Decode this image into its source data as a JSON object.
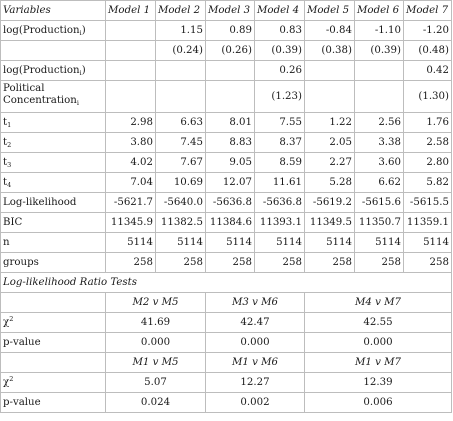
{
  "header": {
    "variables": "Variables",
    "models": [
      "Model 1",
      "Model 2",
      "Model 3",
      "Model 4",
      "Model 5",
      "Model 6",
      "Model 7"
    ]
  },
  "rows": [
    {
      "label": "log(Production",
      "sub": "i",
      "suffix": ")",
      "cells": [
        "",
        "1.15",
        "0.89",
        "0.83",
        "-0.84",
        "-1.10",
        "-1.20"
      ]
    },
    {
      "label": "",
      "sub": "",
      "suffix": "",
      "cells": [
        "",
        "(0.24)",
        "(0.26)",
        "(0.39)",
        "(0.38)",
        "(0.39)",
        "(0.48)"
      ]
    },
    {
      "label": "log(Production",
      "sub": "i",
      "suffix": ")",
      "cells": [
        "",
        "",
        "",
        "0.26",
        "",
        "",
        "0.42"
      ]
    },
    {
      "label": "Political Concentration",
      "sub": "i",
      "suffix": "",
      "cells": [
        "",
        "",
        "",
        "(1.23)",
        "",
        "",
        "(1.30)"
      ]
    },
    {
      "label": "t",
      "sub": "1",
      "suffix": "",
      "cells": [
        "2.98",
        "6.63",
        "8.01",
        "7.55",
        "1.22",
        "2.56",
        "1.76"
      ]
    },
    {
      "label": "t",
      "sub": "2",
      "suffix": "",
      "cells": [
        "3.80",
        "7.45",
        "8.83",
        "8.37",
        "2.05",
        "3.38",
        "2.58"
      ]
    },
    {
      "label": "t",
      "sub": "3",
      "suffix": "",
      "cells": [
        "4.02",
        "7.67",
        "9.05",
        "8.59",
        "2.27",
        "3.60",
        "2.80"
      ]
    },
    {
      "label": "t",
      "sub": "4",
      "suffix": "",
      "cells": [
        "7.04",
        "10.69",
        "12.07",
        "11.61",
        "5.28",
        "6.62",
        "5.82"
      ]
    },
    {
      "label": "Log-likelihood",
      "sub": "",
      "suffix": "",
      "cells": [
        "-5621.7",
        "-5640.0",
        "-5636.8",
        "-5636.8",
        "-5619.2",
        "-5615.6",
        "-5615.5"
      ]
    },
    {
      "label": "BIC",
      "sub": "",
      "suffix": "",
      "cells": [
        "11345.9",
        "11382.5",
        "11384.6",
        "11393.1",
        "11349.5",
        "11350.7",
        "11359.1"
      ]
    },
    {
      "label": "n",
      "sub": "",
      "suffix": "",
      "cells": [
        "5114",
        "5114",
        "5114",
        "5114",
        "5114",
        "5114",
        "5114"
      ]
    },
    {
      "label": "groups",
      "sub": "",
      "suffix": "",
      "cells": [
        "258",
        "258",
        "258",
        "258",
        "258",
        "258",
        "258"
      ]
    }
  ],
  "lrt": {
    "title": "Log-likelihood Ratio Tests",
    "chi_label": "χ",
    "chi_sup": "2",
    "pvalue_label": "p-value",
    "groups": [
      {
        "comparisons": [
          "M2 v M5",
          "M3 v M6",
          "M4 v M7"
        ],
        "chi2": [
          "41.69",
          "42.47",
          "42.55"
        ],
        "p": [
          "0.000",
          "0.000",
          "0.000"
        ]
      },
      {
        "comparisons": [
          "M1 v M5",
          "M1 v M6",
          "M1 v M7"
        ],
        "chi2": [
          "5.07",
          "12.27",
          "12.39"
        ],
        "p": [
          "0.024",
          "0.002",
          "0.006"
        ]
      }
    ]
  }
}
